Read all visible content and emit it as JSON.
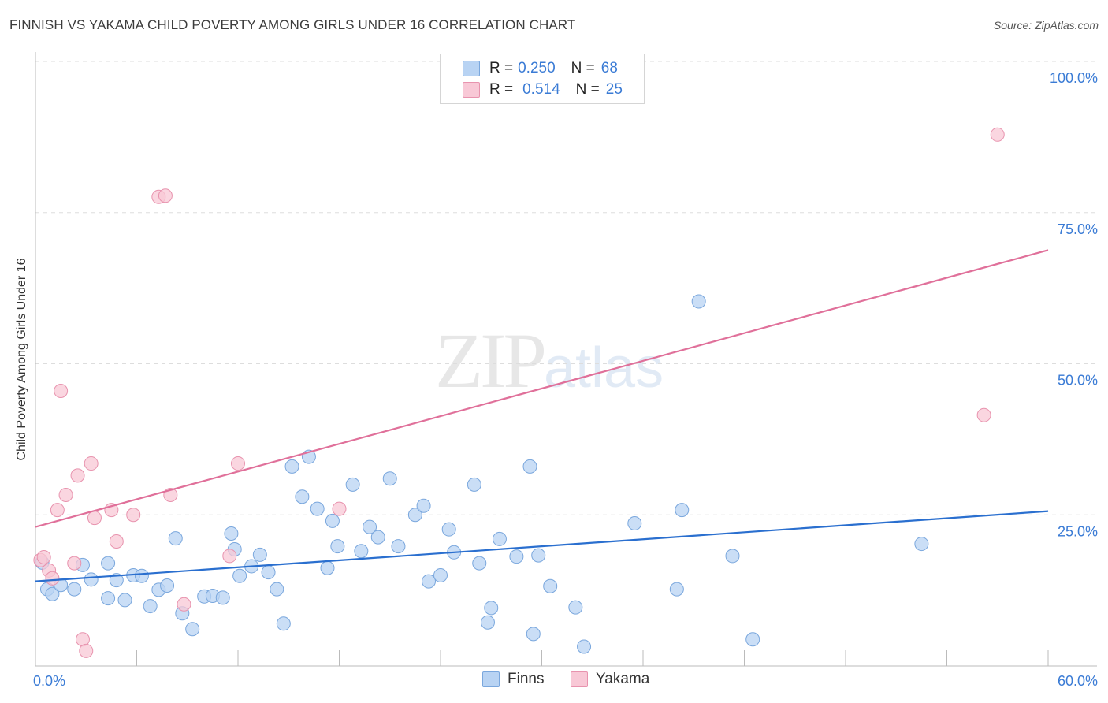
{
  "header": {
    "title": "FINNISH VS YAKAMA CHILD POVERTY AMONG GIRLS UNDER 16 CORRELATION CHART",
    "source": "Source: ZipAtlas.com"
  },
  "watermark": {
    "zip": "ZIP",
    "atlas": "atlas"
  },
  "legend": {
    "rows": [
      {
        "r_label": "R =",
        "r_value": "0.250",
        "n_label": "N =",
        "n_value": "68"
      },
      {
        "r_label": "R =",
        "r_value": "0.514",
        "n_label": "N =",
        "n_value": "25"
      }
    ],
    "bottom": [
      "Finns",
      "Yakama"
    ]
  },
  "colors": {
    "finns_fill": "#b8d3f3",
    "finns_stroke": "#7aa7dd",
    "finns_line": "#2a6fcf",
    "yakama_fill": "#f8c8d6",
    "yakama_stroke": "#e893ae",
    "yakama_line": "#e0709a",
    "tick_label": "#3a7bd5",
    "grid": "#dddddd"
  },
  "chart_data": {
    "type": "scatter",
    "title": "FINNISH VS YAKAMA CHILD POVERTY AMONG GIRLS UNDER 16 CORRELATION CHART",
    "xlabel": "",
    "ylabel": "Child Poverty Among Girls Under 16",
    "xlim": [
      0,
      60
    ],
    "ylim": [
      0,
      100
    ],
    "x_tick_labels": [
      "0.0%",
      "60.0%"
    ],
    "y_ticks": [
      25,
      50,
      75,
      100
    ],
    "y_tick_labels": [
      "25.0%",
      "50.0%",
      "75.0%",
      "100.0%"
    ],
    "grid": true,
    "legend_position": "top-center",
    "series": [
      {
        "name": "Finns",
        "points": [
          [
            0.4,
            17.1
          ],
          [
            0.7,
            12.7
          ],
          [
            1.0,
            11.9
          ],
          [
            1.5,
            13.4
          ],
          [
            2.3,
            12.7
          ],
          [
            2.8,
            16.7
          ],
          [
            3.3,
            14.3
          ],
          [
            4.3,
            17.0
          ],
          [
            4.3,
            11.2
          ],
          [
            4.8,
            14.2
          ],
          [
            5.3,
            10.9
          ],
          [
            5.8,
            15.0
          ],
          [
            6.3,
            14.9
          ],
          [
            6.8,
            9.9
          ],
          [
            7.3,
            12.6
          ],
          [
            7.8,
            13.3
          ],
          [
            8.3,
            21.1
          ],
          [
            8.7,
            8.7
          ],
          [
            9.3,
            6.1
          ],
          [
            10.0,
            11.5
          ],
          [
            10.5,
            11.6
          ],
          [
            11.1,
            11.3
          ],
          [
            11.6,
            21.9
          ],
          [
            11.8,
            19.3
          ],
          [
            12.1,
            14.9
          ],
          [
            12.8,
            16.5
          ],
          [
            13.3,
            18.4
          ],
          [
            13.8,
            15.5
          ],
          [
            14.3,
            12.7
          ],
          [
            14.7,
            7.0
          ],
          [
            15.2,
            33.0
          ],
          [
            15.8,
            28.0
          ],
          [
            16.2,
            34.6
          ],
          [
            16.7,
            26.0
          ],
          [
            17.3,
            16.2
          ],
          [
            17.6,
            24.0
          ],
          [
            17.9,
            19.8
          ],
          [
            18.8,
            30.0
          ],
          [
            19.3,
            19.0
          ],
          [
            19.8,
            23.0
          ],
          [
            20.3,
            21.3
          ],
          [
            21.0,
            31.0
          ],
          [
            21.5,
            19.8
          ],
          [
            22.5,
            25.0
          ],
          [
            23.0,
            26.5
          ],
          [
            23.3,
            14.0
          ],
          [
            24.0,
            15.0
          ],
          [
            24.5,
            22.6
          ],
          [
            24.8,
            18.8
          ],
          [
            26.0,
            30.0
          ],
          [
            26.3,
            17.0
          ],
          [
            26.8,
            7.2
          ],
          [
            27.0,
            9.6
          ],
          [
            27.5,
            21.0
          ],
          [
            28.5,
            18.1
          ],
          [
            29.3,
            33.0
          ],
          [
            29.5,
            5.3
          ],
          [
            29.8,
            18.3
          ],
          [
            30.5,
            13.2
          ],
          [
            32.0,
            9.7
          ],
          [
            32.5,
            3.2
          ],
          [
            35.5,
            23.6
          ],
          [
            38.0,
            12.7
          ],
          [
            38.3,
            25.8
          ],
          [
            39.3,
            60.3
          ],
          [
            41.3,
            18.2
          ],
          [
            42.5,
            4.4
          ],
          [
            52.5,
            20.2
          ]
        ],
        "trend": {
          "x": [
            0,
            60
          ],
          "y": [
            14.0,
            25.6
          ]
        }
      },
      {
        "name": "Yakama",
        "points": [
          [
            0.3,
            17.5
          ],
          [
            0.5,
            18.0
          ],
          [
            0.8,
            15.8
          ],
          [
            1.0,
            14.5
          ],
          [
            1.5,
            45.5
          ],
          [
            1.3,
            25.8
          ],
          [
            1.8,
            28.3
          ],
          [
            2.3,
            17.0
          ],
          [
            2.5,
            31.5
          ],
          [
            2.8,
            4.4
          ],
          [
            3.0,
            2.5
          ],
          [
            3.3,
            33.5
          ],
          [
            3.5,
            24.5
          ],
          [
            4.5,
            25.8
          ],
          [
            4.8,
            20.6
          ],
          [
            5.8,
            25.0
          ],
          [
            7.3,
            77.6
          ],
          [
            7.7,
            77.8
          ],
          [
            8.0,
            28.3
          ],
          [
            8.8,
            10.2
          ],
          [
            11.5,
            18.2
          ],
          [
            12.0,
            33.5
          ],
          [
            18.0,
            26.0
          ],
          [
            56.2,
            41.5
          ],
          [
            57.0,
            87.9
          ]
        ],
        "trend": {
          "x": [
            0,
            60
          ],
          "y": [
            23.0,
            68.8
          ]
        }
      }
    ]
  }
}
